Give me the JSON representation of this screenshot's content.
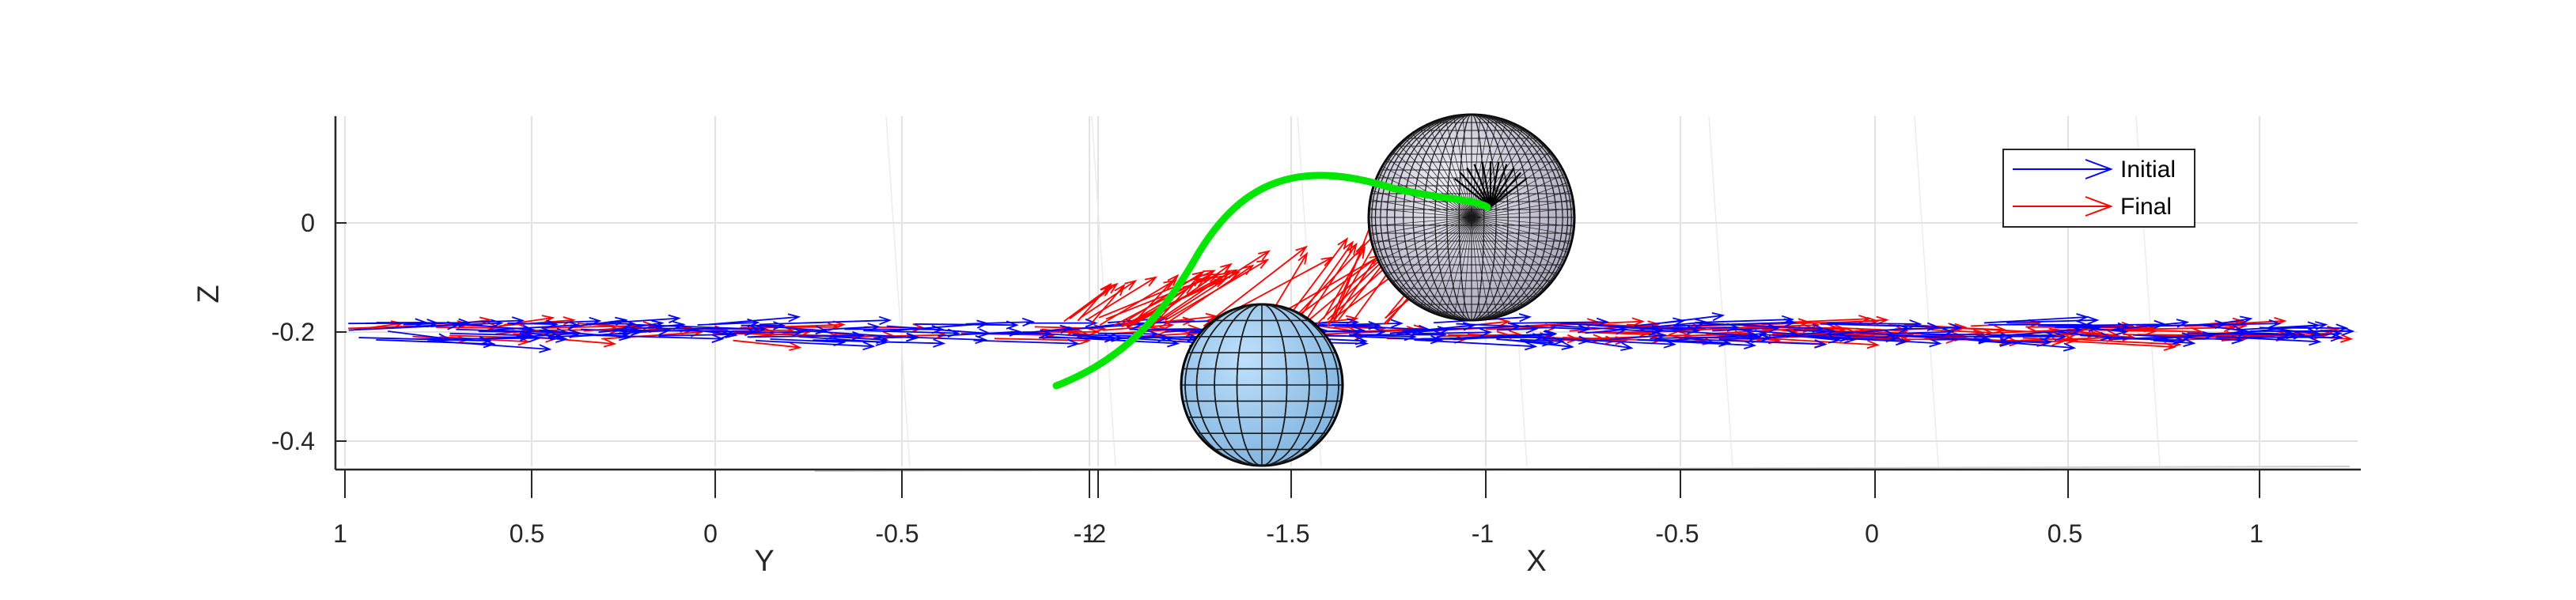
{
  "chart_data": {
    "type": "quiver3d",
    "title": "",
    "xlabel": "X",
    "ylabel": "Y",
    "zlabel": "Z",
    "grid": true,
    "legend_position": "top-right",
    "y_ticks": [
      "1",
      "0.5",
      "0",
      "-0.5",
      "-1"
    ],
    "x_ticks": [
      "-2",
      "-1.5",
      "-1",
      "-0.5",
      "0",
      "0.5",
      "1"
    ],
    "z_ticks": [
      "0",
      "-0.2",
      "-0.4"
    ],
    "zlim": [
      -0.45,
      0.2
    ],
    "series": [
      {
        "name": "Initial",
        "color": "#0000ff",
        "z_level": -0.2
      },
      {
        "name": "Final",
        "color": "#ff0000",
        "z_level": -0.2
      }
    ],
    "trajectory": {
      "color": "#00e600"
    },
    "spheres": [
      {
        "kind": "obstacle",
        "color": "#8fc1ea",
        "center_z": -0.3
      },
      {
        "kind": "target",
        "color": "#d6d2e2",
        "center_z": 0
      }
    ]
  }
}
